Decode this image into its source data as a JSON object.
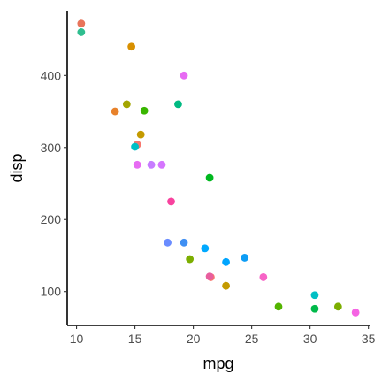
{
  "chart_data": {
    "type": "scatter",
    "xlabel": "mpg",
    "ylabel": "disp",
    "xlim": [
      9.2,
      35.1
    ],
    "ylim": [
      53,
      490
    ],
    "x_ticks": [
      10,
      15,
      20,
      25,
      30,
      35
    ],
    "y_ticks": [
      100,
      200,
      300,
      400
    ],
    "grid": false,
    "legend": "none",
    "points": [
      {
        "x": 10.4,
        "y": 472,
        "color": "#E8745A"
      },
      {
        "x": 10.4,
        "y": 460,
        "color": "#2FBE8F"
      },
      {
        "x": 14.7,
        "y": 440,
        "color": "#D89000"
      },
      {
        "x": 19.2,
        "y": 400,
        "color": "#E76BF3"
      },
      {
        "x": 13.3,
        "y": 350,
        "color": "#E8822B"
      },
      {
        "x": 14.3,
        "y": 360,
        "color": "#A3A500"
      },
      {
        "x": 15.8,
        "y": 351,
        "color": "#39B600"
      },
      {
        "x": 18.7,
        "y": 360,
        "color": "#00BA82"
      },
      {
        "x": 15.5,
        "y": 318,
        "color": "#C49A00"
      },
      {
        "x": 15.2,
        "y": 304,
        "color": "#F8766D"
      },
      {
        "x": 15.0,
        "y": 301,
        "color": "#00BFC4"
      },
      {
        "x": 15.2,
        "y": 276,
        "color": "#E76BF3"
      },
      {
        "x": 16.4,
        "y": 276,
        "color": "#C77CFF"
      },
      {
        "x": 17.3,
        "y": 276,
        "color": "#D575FE"
      },
      {
        "x": 21.4,
        "y": 258,
        "color": "#00B81F"
      },
      {
        "x": 18.1,
        "y": 225,
        "color": "#F8429E"
      },
      {
        "x": 17.8,
        "y": 168,
        "color": "#6A8CFF"
      },
      {
        "x": 19.2,
        "y": 168,
        "color": "#3F8FF3"
      },
      {
        "x": 21.0,
        "y": 160,
        "color": "#00A9FF"
      },
      {
        "x": 24.4,
        "y": 147,
        "color": "#0D9DF5"
      },
      {
        "x": 22.8,
        "y": 141,
        "color": "#00A5FF"
      },
      {
        "x": 19.7,
        "y": 145,
        "color": "#7CAE00"
      },
      {
        "x": 21.5,
        "y": 120,
        "color": "#F8766D"
      },
      {
        "x": 21.4,
        "y": 121,
        "color": "#E85E9E"
      },
      {
        "x": 26.0,
        "y": 120,
        "color": "#F763C6"
      },
      {
        "x": 22.8,
        "y": 108,
        "color": "#C49A00"
      },
      {
        "x": 30.4,
        "y": 95,
        "color": "#00BFC4"
      },
      {
        "x": 27.3,
        "y": 79,
        "color": "#53B400"
      },
      {
        "x": 30.4,
        "y": 76,
        "color": "#00B94A"
      },
      {
        "x": 32.4,
        "y": 79,
        "color": "#7CAE00"
      },
      {
        "x": 33.9,
        "y": 71,
        "color": "#F564E3"
      }
    ]
  }
}
